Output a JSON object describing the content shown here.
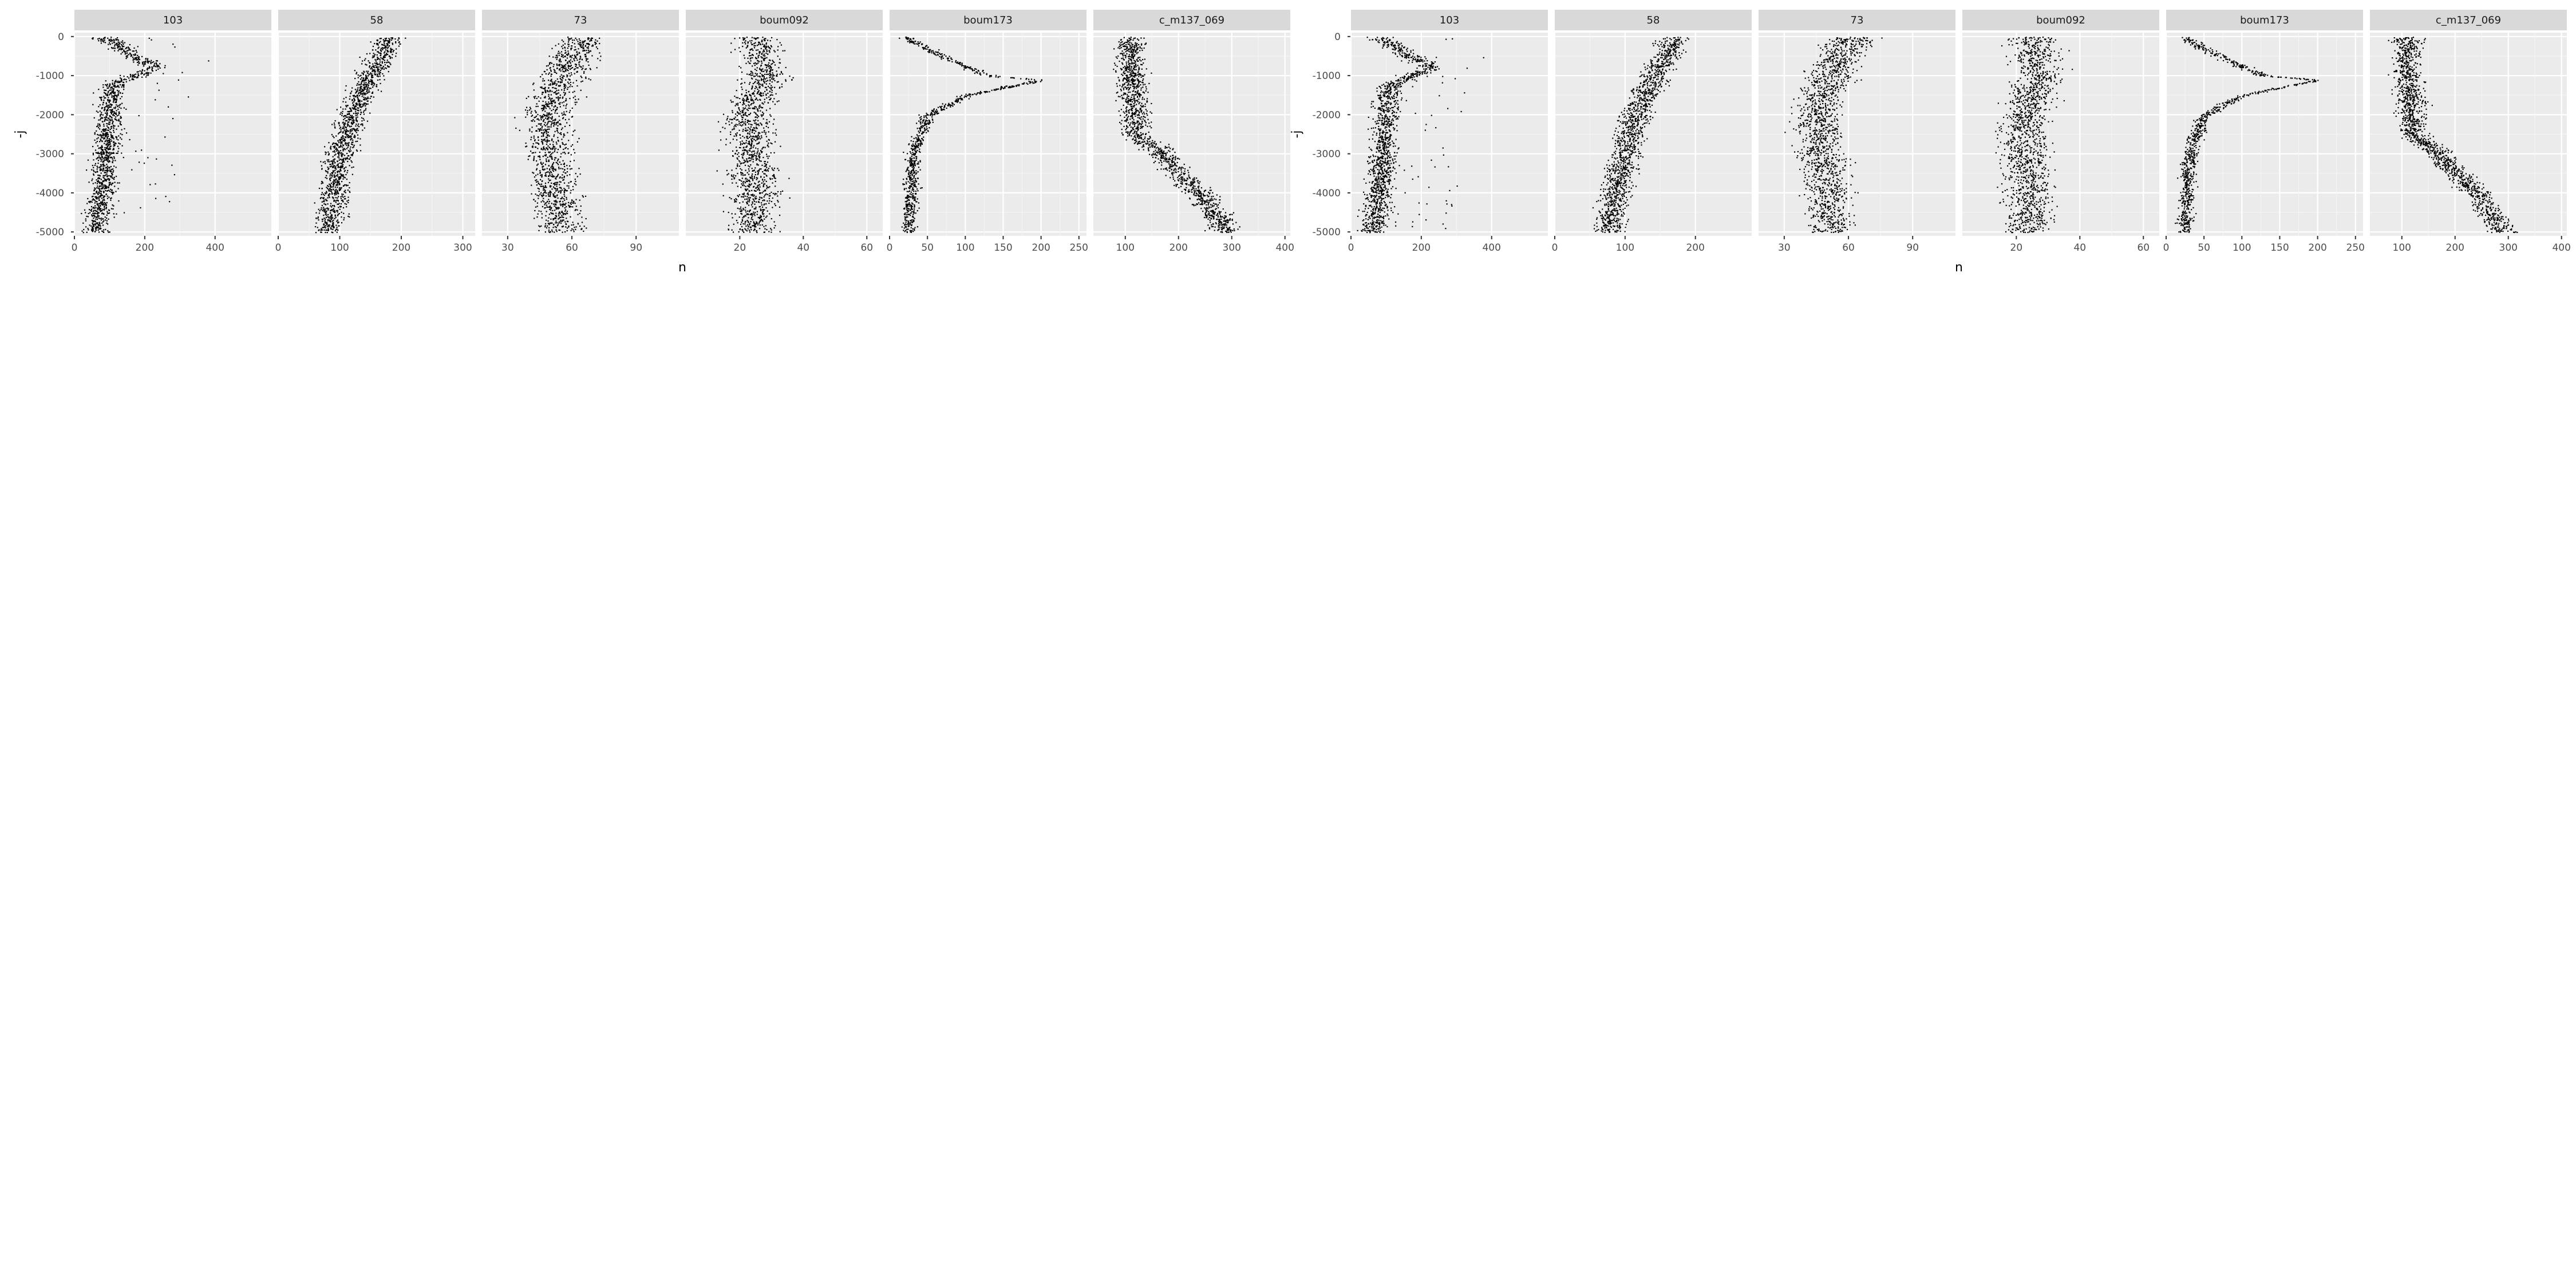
{
  "chart_data": [
    {
      "type": "scatter",
      "title": "",
      "xlabel": "n",
      "ylabel": "-j",
      "ylim": [
        -5100,
        100
      ],
      "y_ticks": [
        0,
        -1000,
        -2000,
        -3000,
        -4000,
        -5000
      ],
      "grid": true,
      "mark_color": "#000000",
      "facets": [
        {
          "name": "103",
          "xlim": [
            0,
            560
          ],
          "x_ticks": [
            0,
            200,
            400
          ],
          "profile": [
            [
              0,
              80
            ],
            [
              500,
              170
            ],
            [
              800,
              230
            ],
            [
              1200,
              110
            ],
            [
              2500,
              90
            ],
            [
              4000,
              80
            ],
            [
              5000,
              60
            ]
          ],
          "spread": 35,
          "style": "outlier-tail"
        },
        {
          "name": "58",
          "xlim": [
            0,
            320
          ],
          "x_ticks": [
            0,
            100,
            200,
            300
          ],
          "profile": [
            [
              0,
              180
            ],
            [
              1000,
              150
            ],
            [
              2000,
              120
            ],
            [
              3000,
              100
            ],
            [
              4000,
              90
            ],
            [
              5000,
              80
            ]
          ],
          "spread": 22,
          "style": "band"
        },
        {
          "name": "73",
          "xlim": [
            18,
            110
          ],
          "x_ticks": [
            30,
            60,
            90
          ],
          "profile": [
            [
              0,
              65
            ],
            [
              1000,
              55
            ],
            [
              2000,
              48
            ],
            [
              3000,
              50
            ],
            [
              4000,
              52
            ],
            [
              5000,
              55
            ]
          ],
          "spread": 10,
          "style": "band"
        },
        {
          "name": "boum092",
          "xlim": [
            3,
            65
          ],
          "x_ticks": [
            20,
            40,
            60
          ],
          "profile": [
            [
              0,
              25
            ],
            [
              1000,
              28
            ],
            [
              2000,
              22
            ],
            [
              3000,
              24
            ],
            [
              4000,
              25
            ],
            [
              5000,
              24
            ]
          ],
          "spread": 7,
          "style": "band"
        },
        {
          "name": "boum173",
          "xlim": [
            0,
            260
          ],
          "x_ticks": [
            0,
            50,
            100,
            150,
            200,
            250
          ],
          "profile": [
            [
              0,
              20
            ],
            [
              500,
              70
            ],
            [
              1000,
              130
            ],
            [
              1100,
              200
            ],
            [
              1500,
              100
            ],
            [
              2000,
              50
            ],
            [
              3000,
              30
            ],
            [
              5000,
              25
            ]
          ],
          "spread": 9,
          "style": "line"
        },
        {
          "name": "c_m137_069",
          "xlim": [
            40,
            410
          ],
          "x_ticks": [
            100,
            200,
            300,
            400
          ],
          "profile": [
            [
              0,
              110
            ],
            [
              1000,
              110
            ],
            [
              2500,
              120
            ],
            [
              3000,
              170
            ],
            [
              3500,
              200
            ],
            [
              4000,
              240
            ],
            [
              5000,
              290
            ]
          ],
          "spread": 25,
          "style": "band"
        }
      ]
    },
    {
      "type": "scatter",
      "title": "",
      "xlabel": "n",
      "ylabel": "-j",
      "ylim": [
        -5100,
        100
      ],
      "y_ticks": [
        0,
        -1000,
        -2000,
        -3000,
        -4000,
        -5000
      ],
      "grid": true,
      "mark_color": "#000000",
      "facets": [
        {
          "name": "103",
          "xlim": [
            0,
            560
          ],
          "x_ticks": [
            0,
            200,
            400
          ],
          "profile": [
            [
              0,
              80
            ],
            [
              500,
              170
            ],
            [
              800,
              230
            ],
            [
              1200,
              110
            ],
            [
              2500,
              90
            ],
            [
              4000,
              80
            ],
            [
              5000,
              60
            ]
          ],
          "spread": 35,
          "style": "outlier-tail"
        },
        {
          "name": "58",
          "xlim": [
            0,
            280
          ],
          "x_ticks": [
            0,
            100,
            200
          ],
          "profile": [
            [
              0,
              170
            ],
            [
              1000,
              140
            ],
            [
              2000,
              115
            ],
            [
              3000,
              100
            ],
            [
              4000,
              85
            ],
            [
              5000,
              75
            ]
          ],
          "spread": 20,
          "style": "band"
        },
        {
          "name": "73",
          "xlim": [
            18,
            110
          ],
          "x_ticks": [
            30,
            60,
            90
          ],
          "profile": [
            [
              0,
              62
            ],
            [
              1000,
              50
            ],
            [
              2000,
              45
            ],
            [
              3000,
              47
            ],
            [
              4000,
              50
            ],
            [
              5000,
              52
            ]
          ],
          "spread": 10,
          "style": "band"
        },
        {
          "name": "boum092",
          "xlim": [
            3,
            65
          ],
          "x_ticks": [
            20,
            40,
            60
          ],
          "profile": [
            [
              0,
              25
            ],
            [
              1000,
              27
            ],
            [
              2000,
              22
            ],
            [
              3000,
              23
            ],
            [
              4000,
              24
            ],
            [
              5000,
              23
            ]
          ],
          "spread": 7,
          "style": "band"
        },
        {
          "name": "boum173",
          "xlim": [
            0,
            260
          ],
          "x_ticks": [
            0,
            50,
            100,
            150,
            200,
            250
          ],
          "profile": [
            [
              0,
              20
            ],
            [
              500,
              70
            ],
            [
              1000,
              130
            ],
            [
              1100,
              200
            ],
            [
              1500,
              100
            ],
            [
              2000,
              50
            ],
            [
              3000,
              30
            ],
            [
              5000,
              25
            ]
          ],
          "spread": 9,
          "style": "line"
        },
        {
          "name": "c_m137_069",
          "xlim": [
            40,
            410
          ],
          "x_ticks": [
            100,
            200,
            300,
            400
          ],
          "profile": [
            [
              0,
              110
            ],
            [
              1000,
              110
            ],
            [
              2500,
              120
            ],
            [
              3000,
              170
            ],
            [
              3500,
              200
            ],
            [
              4000,
              240
            ],
            [
              5000,
              290
            ]
          ],
          "spread": 25,
          "style": "band"
        }
      ]
    }
  ]
}
